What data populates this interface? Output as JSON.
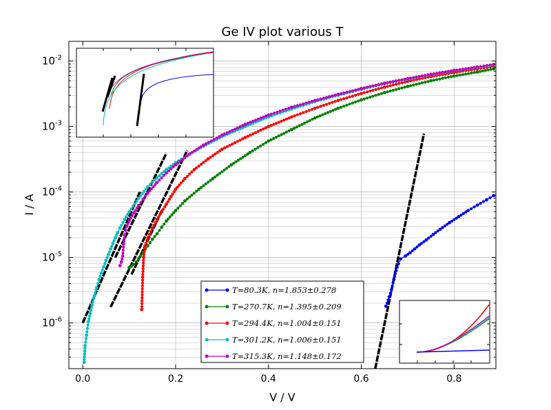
{
  "chart_data": {
    "type": "scatter",
    "title": "Ge IV plot various T",
    "xlabel": "V / V",
    "ylabel": "I / A",
    "xscale": "linear",
    "yscale": "log",
    "xlim": [
      -0.03,
      0.89
    ],
    "ylim": [
      2e-07,
      0.02
    ],
    "grid": true,
    "legend_position": "lower-right",
    "x_ticks": [
      {
        "value": 0.0,
        "label": "0.0"
      },
      {
        "value": 0.2,
        "label": "0.2"
      },
      {
        "value": 0.4,
        "label": "0.4"
      },
      {
        "value": 0.6,
        "label": "0.6"
      },
      {
        "value": 0.8,
        "label": "0.8"
      }
    ],
    "y_ticks": [
      {
        "value": 1e-06,
        "base": "10",
        "exp": "-6"
      },
      {
        "value": 1e-05,
        "base": "10",
        "exp": "-5"
      },
      {
        "value": 0.0001,
        "base": "10",
        "exp": "-4"
      },
      {
        "value": 0.001,
        "base": "10",
        "exp": "-3"
      },
      {
        "value": 0.01,
        "base": "10",
        "exp": "-2"
      }
    ],
    "series": [
      {
        "name": "T=80.3K, n=1.853±0.278",
        "color": "#0000ff",
        "points": [
          [
            0.653,
            1.8e-06
          ],
          [
            0.66,
            2.5e-06
          ],
          [
            0.665,
            3.2e-06
          ],
          [
            0.67,
            4.6e-06
          ],
          [
            0.675,
            6.3e-06
          ],
          [
            0.68,
            8e-06
          ],
          [
            0.685,
            9.5e-06
          ],
          [
            0.695,
            1.05e-05
          ],
          [
            0.705,
            1.18e-05
          ],
          [
            0.715,
            1.35e-05
          ],
          [
            0.725,
            1.55e-05
          ],
          [
            0.74,
            1.85e-05
          ],
          [
            0.755,
            2.25e-05
          ],
          [
            0.77,
            2.7e-05
          ],
          [
            0.79,
            3.4e-05
          ],
          [
            0.81,
            4.2e-05
          ],
          [
            0.83,
            5.2e-05
          ],
          [
            0.85,
            6.3e-05
          ],
          [
            0.87,
            7.6e-05
          ],
          [
            0.885,
            8.8e-05
          ]
        ]
      },
      {
        "name": "T=270.7K, n=1.395±0.209",
        "color": "#008000",
        "points": [
          [
            0.1,
            7e-06
          ],
          [
            0.11,
            7.8e-06
          ],
          [
            0.12,
            9.5e-06
          ],
          [
            0.13,
            1.2e-05
          ],
          [
            0.14,
            1.5e-05
          ],
          [
            0.15,
            1.9e-05
          ],
          [
            0.16,
            2.3e-05
          ],
          [
            0.17,
            2.9e-05
          ],
          [
            0.18,
            3.6e-05
          ],
          [
            0.2,
            5.2e-05
          ],
          [
            0.22,
            7.3e-05
          ],
          [
            0.25,
            0.00011
          ],
          [
            0.28,
            0.00016
          ],
          [
            0.32,
            0.00026
          ],
          [
            0.36,
            0.0004
          ],
          [
            0.4,
            0.0006
          ],
          [
            0.45,
            0.0009
          ],
          [
            0.5,
            0.00135
          ],
          [
            0.55,
            0.0019
          ],
          [
            0.6,
            0.00255
          ],
          [
            0.65,
            0.0033
          ],
          [
            0.7,
            0.0041
          ],
          [
            0.75,
            0.005
          ],
          [
            0.8,
            0.0059
          ],
          [
            0.85,
            0.0068
          ],
          [
            0.885,
            0.0076
          ]
        ]
      },
      {
        "name": "T=294.4K, n=1.004±0.151",
        "color": "#ff0000",
        "points": [
          [
            0.127,
            1.6e-06
          ],
          [
            0.129,
            5e-06
          ],
          [
            0.131,
            1e-05
          ],
          [
            0.134,
            1.5e-05
          ],
          [
            0.14,
            2e-05
          ],
          [
            0.15,
            2.8e-05
          ],
          [
            0.16,
            3.8e-05
          ],
          [
            0.17,
            5e-05
          ],
          [
            0.18,
            6.5e-05
          ],
          [
            0.19,
            8.5e-05
          ],
          [
            0.2,
            0.00011
          ],
          [
            0.22,
            0.00016
          ],
          [
            0.24,
            0.00022
          ],
          [
            0.27,
            0.00032
          ],
          [
            0.3,
            0.00045
          ],
          [
            0.35,
            0.00068
          ],
          [
            0.4,
            0.001
          ],
          [
            0.45,
            0.0014
          ],
          [
            0.5,
            0.0019
          ],
          [
            0.55,
            0.0025
          ],
          [
            0.6,
            0.0032
          ],
          [
            0.65,
            0.004
          ],
          [
            0.7,
            0.0049
          ],
          [
            0.75,
            0.0058
          ],
          [
            0.8,
            0.0067
          ],
          [
            0.85,
            0.0076
          ],
          [
            0.885,
            0.0083
          ]
        ]
      },
      {
        "name": "T=301.2K, n=1.006±0.151",
        "color": "#00bfbf",
        "points": [
          [
            0.003,
            2.5e-07
          ],
          [
            0.005,
            4.5e-07
          ],
          [
            0.008,
            6.5e-07
          ],
          [
            0.012,
            1.05e-06
          ],
          [
            0.016,
            1.4e-06
          ],
          [
            0.02,
            1.9e-06
          ],
          [
            0.025,
            2.6e-06
          ],
          [
            0.03,
            3.5e-06
          ],
          [
            0.035,
            4.6e-06
          ],
          [
            0.04,
            5.8e-06
          ],
          [
            0.045,
            7.2e-06
          ],
          [
            0.05,
            9e-06
          ],
          [
            0.055,
            1.1e-05
          ],
          [
            0.06,
            1.35e-05
          ],
          [
            0.065,
            1.65e-05
          ],
          [
            0.07,
            2e-05
          ],
          [
            0.075,
            2.4e-05
          ],
          [
            0.08,
            2.8e-05
          ],
          [
            0.09,
            3.8e-05
          ],
          [
            0.1,
            5e-05
          ],
          [
            0.12,
            8e-05
          ],
          [
            0.14,
            0.00012
          ],
          [
            0.16,
            0.000165
          ],
          [
            0.18,
            0.00022
          ],
          [
            0.2,
            0.00028
          ],
          [
            0.23,
            0.00038
          ],
          [
            0.26,
            0.0005
          ],
          [
            0.3,
            0.0007
          ],
          [
            0.35,
            0.001
          ],
          [
            0.4,
            0.0014
          ],
          [
            0.45,
            0.00185
          ],
          [
            0.5,
            0.0024
          ],
          [
            0.55,
            0.003
          ],
          [
            0.6,
            0.0037
          ],
          [
            0.65,
            0.0045
          ],
          [
            0.7,
            0.0053
          ],
          [
            0.75,
            0.0062
          ],
          [
            0.8,
            0.0071
          ],
          [
            0.85,
            0.008
          ],
          [
            0.885,
            0.0087
          ]
        ]
      },
      {
        "name": "T=315.3K, n=1.148±0.172",
        "color": "#bf00bf",
        "points": [
          [
            0.08,
            7.5e-06
          ],
          [
            0.083,
            8.5e-06
          ],
          [
            0.086,
            1.05e-05
          ],
          [
            0.088,
            1.6e-05
          ],
          [
            0.09,
            2.2e-05
          ],
          [
            0.092,
            2.6e-05
          ],
          [
            0.095,
            3e-05
          ],
          [
            0.1,
            3.6e-05
          ],
          [
            0.11,
            4.8e-05
          ],
          [
            0.12,
            6.2e-05
          ],
          [
            0.13,
            7.8e-05
          ],
          [
            0.14,
            9.6e-05
          ],
          [
            0.16,
            0.00014
          ],
          [
            0.18,
            0.000195
          ],
          [
            0.2,
            0.00026
          ],
          [
            0.23,
            0.00038
          ],
          [
            0.26,
            0.00052
          ],
          [
            0.3,
            0.00074
          ],
          [
            0.35,
            0.00108
          ],
          [
            0.4,
            0.0015
          ],
          [
            0.45,
            0.00197
          ],
          [
            0.5,
            0.0025
          ],
          [
            0.55,
            0.0031
          ],
          [
            0.6,
            0.0038
          ],
          [
            0.65,
            0.0046
          ],
          [
            0.7,
            0.0054
          ],
          [
            0.75,
            0.0063
          ],
          [
            0.8,
            0.0072
          ],
          [
            0.85,
            0.0081
          ],
          [
            0.885,
            0.0089
          ]
        ]
      }
    ],
    "fit_lines": [
      {
        "color": "#000000",
        "points": [
          [
            0.63,
            2e-07
          ],
          [
            0.735,
            0.00078
          ]
        ]
      },
      {
        "color": "#000000",
        "points": [
          [
            0.06,
            1.75e-06
          ],
          [
            0.225,
            0.00043
          ]
        ]
      },
      {
        "color": "#000000",
        "points": [
          [
            0.105,
            5.5e-06
          ],
          [
            0.172,
            5.5e-05
          ]
        ]
      },
      {
        "color": "#000000",
        "points": [
          [
            0.0,
            1e-06
          ],
          [
            0.123,
            0.0001
          ]
        ]
      },
      {
        "color": "#000000",
        "points": [
          [
            0.07,
            1e-05
          ],
          [
            0.18,
            0.00039
          ]
        ]
      }
    ],
    "insets": [
      {
        "position": "upper-left",
        "content": "log-scale overview of all curves with fit lines"
      },
      {
        "position": "lower-right",
        "content": "linear-scale overview of current vs voltage"
      }
    ]
  }
}
